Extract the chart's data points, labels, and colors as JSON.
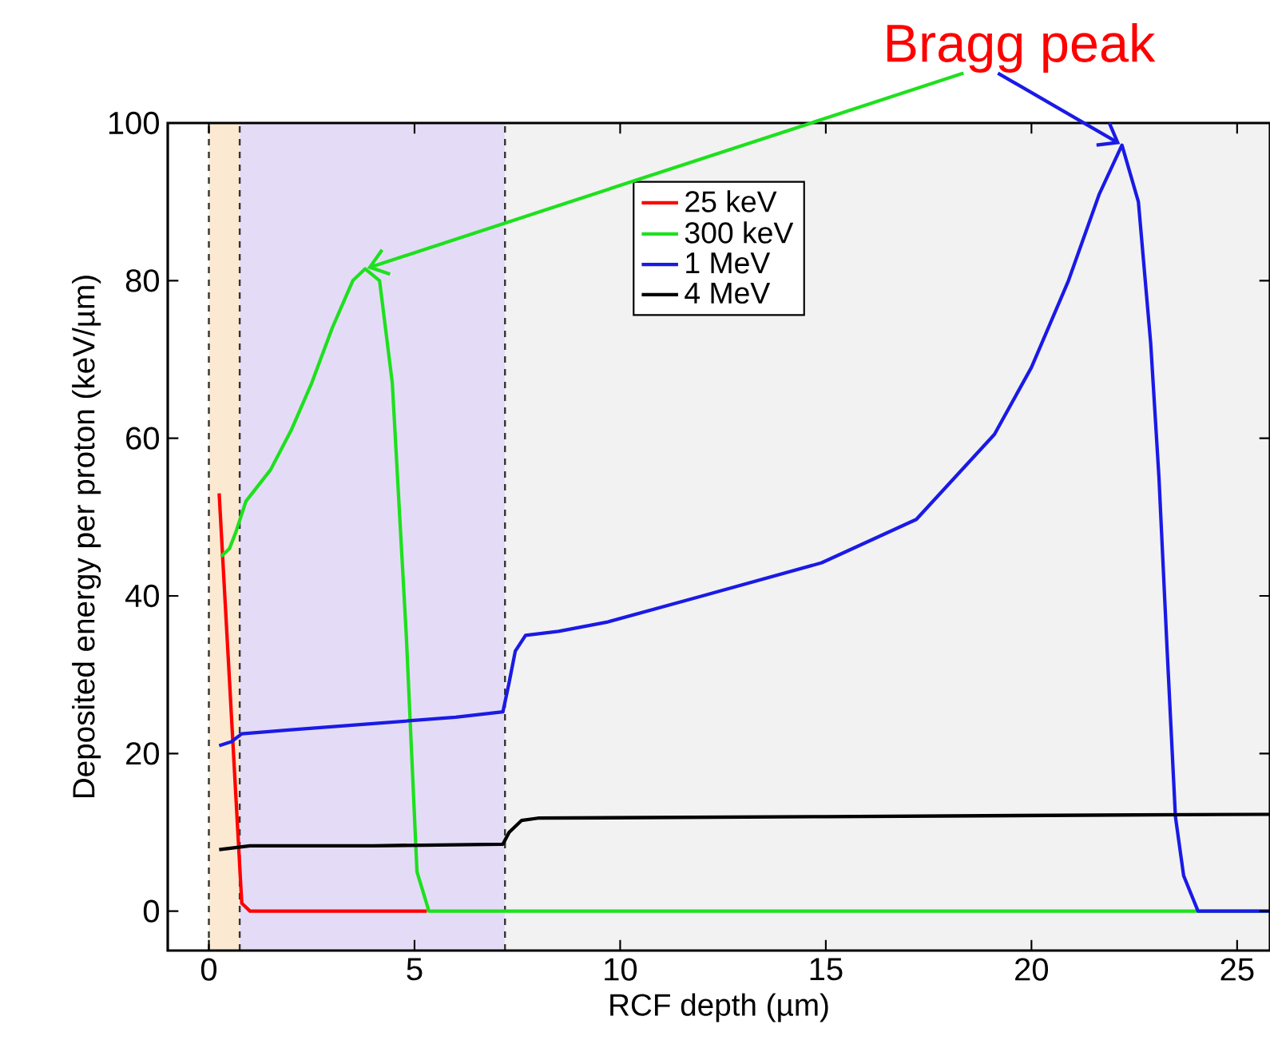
{
  "chart_data": {
    "type": "line",
    "xlabel": "RCF depth (µm)",
    "ylabel": "Deposited energy per proton (keV/µm)",
    "xlim": [
      -1,
      25.8
    ],
    "ylim": [
      -5,
      100
    ],
    "xticks": [
      0,
      5,
      10,
      15,
      20,
      25
    ],
    "yticks": [
      0,
      20,
      40,
      60,
      80,
      100
    ],
    "legend": "top",
    "marker": "none",
    "line_style": "solid",
    "annotations": [
      "Bragg peak"
    ],
    "bands": [
      {
        "axis": "x",
        "from": 0,
        "to": 0.75,
        "color": "#fbe9d2"
      },
      {
        "axis": "x",
        "from": 0.75,
        "to": 7.2,
        "color": "#e4dcf6"
      },
      {
        "axis": "x",
        "from": 7.2,
        "to": 25.8,
        "color": "#f2f2f2"
      }
    ],
    "ref_lines": [
      {
        "axis": "x",
        "value": 0,
        "color": "#333333",
        "line_style": "dashed"
      },
      {
        "axis": "x",
        "value": 0.75,
        "color": "#333333",
        "line_style": "dashed"
      },
      {
        "axis": "x",
        "value": 7.2,
        "color": "#333333",
        "line_style": "dashed"
      }
    ],
    "series": [
      {
        "name": "25 keV",
        "color": "#ff0000",
        "x": [
          0.25,
          0.8,
          1.0,
          5.3
        ],
        "values": [
          53,
          1,
          0,
          0
        ]
      },
      {
        "name": "300 keV",
        "color": "#1ee01e",
        "x": [
          0.3,
          0.5,
          0.65,
          0.9,
          1.2,
          1.5,
          2,
          2.5,
          3,
          3.5,
          3.8,
          4.15,
          4.46,
          4.8,
          5.06,
          5.35,
          25.8
        ],
        "values": [
          45,
          46,
          48,
          52,
          54,
          56,
          61,
          67,
          74,
          80,
          81.5,
          80,
          67,
          35,
          5,
          0,
          0
        ]
      },
      {
        "name": "1 MeV",
        "color": "#1a1ae6",
        "x": [
          0.25,
          0.55,
          0.8,
          2,
          4,
          6,
          7.15,
          7.3,
          7.45,
          7.7,
          8.5,
          9.7,
          12,
          14.9,
          17.2,
          19.1,
          20,
          20.9,
          21.65,
          22.2,
          22.6,
          22.9,
          23.1,
          23.3,
          23.5,
          23.7,
          24.05,
          25.8
        ],
        "values": [
          21,
          21.5,
          22.5,
          23,
          23.8,
          24.6,
          25.3,
          29,
          33,
          35,
          35.5,
          36.7,
          40,
          44.2,
          49.7,
          60.5,
          69,
          80,
          91,
          97.2,
          90,
          72,
          55,
          33,
          12,
          4.5,
          0,
          0
        ]
      },
      {
        "name": "4 MeV",
        "color": "#000000",
        "x": [
          0.25,
          1,
          4,
          7.15,
          7.3,
          7.6,
          8,
          15,
          25.8
        ],
        "values": [
          7.8,
          8.3,
          8.3,
          8.5,
          10,
          11.5,
          11.8,
          12,
          12.3
        ]
      }
    ]
  }
}
